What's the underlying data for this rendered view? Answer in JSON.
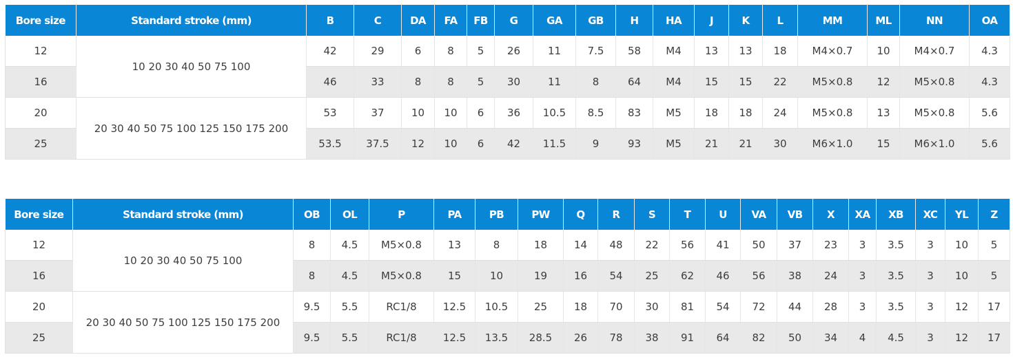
{
  "table1": {
    "headers": [
      "Bore size",
      "Standard stroke (mm)",
      "B",
      "C",
      "DA",
      "FA",
      "FB",
      "G",
      "GA",
      "GB",
      "H",
      "HA",
      "J",
      "K",
      "L",
      "MM",
      "ML",
      "NN",
      "OA"
    ],
    "strokes": [
      "10 20 30 40 50 75 100",
      "20 30 40 50 75 100 125 150 175 200"
    ],
    "rows": [
      {
        "bore": "12",
        "values": [
          "42",
          "29",
          "6",
          "8",
          "5",
          "26",
          "11",
          "7.5",
          "58",
          "M4",
          "13",
          "13",
          "18",
          "M4×0.7",
          "10",
          "M4×0.7",
          "4.3"
        ]
      },
      {
        "bore": "16",
        "values": [
          "46",
          "33",
          "8",
          "8",
          "5",
          "30",
          "11",
          "8",
          "64",
          "M4",
          "15",
          "15",
          "22",
          "M5×0.8",
          "12",
          "M5×0.8",
          "4.3"
        ]
      },
      {
        "bore": "20",
        "values": [
          "53",
          "37",
          "10",
          "10",
          "6",
          "36",
          "10.5",
          "8.5",
          "83",
          "M5",
          "18",
          "18",
          "24",
          "M5×0.8",
          "13",
          "M5×0.8",
          "5.6"
        ]
      },
      {
        "bore": "25",
        "values": [
          "53.5",
          "37.5",
          "12",
          "10",
          "6",
          "42",
          "11.5",
          "9",
          "93",
          "M5",
          "21",
          "21",
          "30",
          "M6×1.0",
          "15",
          "M6×1.0",
          "5.6"
        ]
      }
    ]
  },
  "table2": {
    "headers": [
      "Bore size",
      "Standard stroke (mm)",
      "OB",
      "OL",
      "P",
      "PA",
      "PB",
      "PW",
      "Q",
      "R",
      "S",
      "T",
      "U",
      "VA",
      "VB",
      "X",
      "XA",
      "XB",
      "XC",
      "YL",
      "Z"
    ],
    "strokes": [
      "10 20 30 40 50 75 100",
      "20 30 40 50 75 100 125 150 175 200"
    ],
    "rows": [
      {
        "bore": "12",
        "values": [
          "8",
          "4.5",
          "M5×0.8",
          "13",
          "8",
          "18",
          "14",
          "48",
          "22",
          "56",
          "41",
          "50",
          "37",
          "23",
          "3",
          "3.5",
          "3",
          "10",
          "5"
        ]
      },
      {
        "bore": "16",
        "values": [
          "8",
          "4.5",
          "M5×0.8",
          "15",
          "10",
          "19",
          "16",
          "54",
          "25",
          "62",
          "46",
          "56",
          "38",
          "24",
          "3",
          "3.5",
          "3",
          "10",
          "5"
        ]
      },
      {
        "bore": "20",
        "values": [
          "9.5",
          "5.5",
          "RC1/8",
          "12.5",
          "10.5",
          "25",
          "18",
          "70",
          "30",
          "81",
          "54",
          "72",
          "44",
          "28",
          "3",
          "3.5",
          "3",
          "12",
          "17"
        ]
      },
      {
        "bore": "25",
        "values": [
          "9.5",
          "5.5",
          "RC1/8",
          "12.5",
          "13.5",
          "28.5",
          "26",
          "78",
          "38",
          "91",
          "64",
          "82",
          "50",
          "34",
          "4",
          "4.5",
          "3",
          "12",
          "17"
        ]
      }
    ]
  },
  "colors": {
    "header_bg": "#0a86d6",
    "header_text": "#ffffff",
    "stripe": "#e9e9e9",
    "text": "#3d3d3d"
  }
}
